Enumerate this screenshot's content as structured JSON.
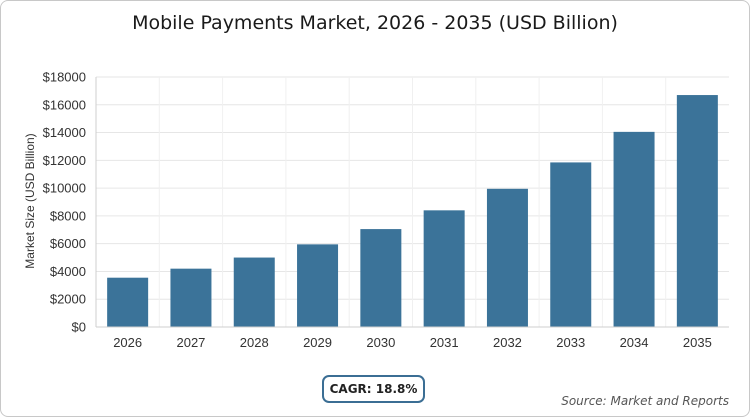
{
  "chart_data": {
    "type": "bar",
    "title": "Mobile Payments Market, 2026 - 2035 (USD Billion)",
    "ylabel": "Market Size (USD Billion)",
    "xlabel": "",
    "categories": [
      "2026",
      "2027",
      "2028",
      "2029",
      "2030",
      "2031",
      "2032",
      "2033",
      "2034",
      "2035"
    ],
    "values": [
      3550,
      4200,
      5000,
      5950,
      7050,
      8400,
      9950,
      11850,
      14050,
      16700
    ],
    "ylim": [
      0,
      18000
    ],
    "yticks": [
      0,
      2000,
      4000,
      6000,
      8000,
      10000,
      12000,
      14000,
      16000,
      18000
    ],
    "ytick_labels": [
      "$0",
      "$2000",
      "$4000",
      "$6000",
      "$8000",
      "$10000",
      "$12000",
      "$14000",
      "$16000",
      "$18000"
    ],
    "grid": true,
    "bar_color": "#3b7399"
  },
  "footer": {
    "cagr_label": "CAGR: 18.8%",
    "source": "Source: Market and Reports"
  },
  "colors": {
    "bar": "#3b7399",
    "cagr_border": "#3b6e94",
    "grid": "#e6e6e6"
  }
}
